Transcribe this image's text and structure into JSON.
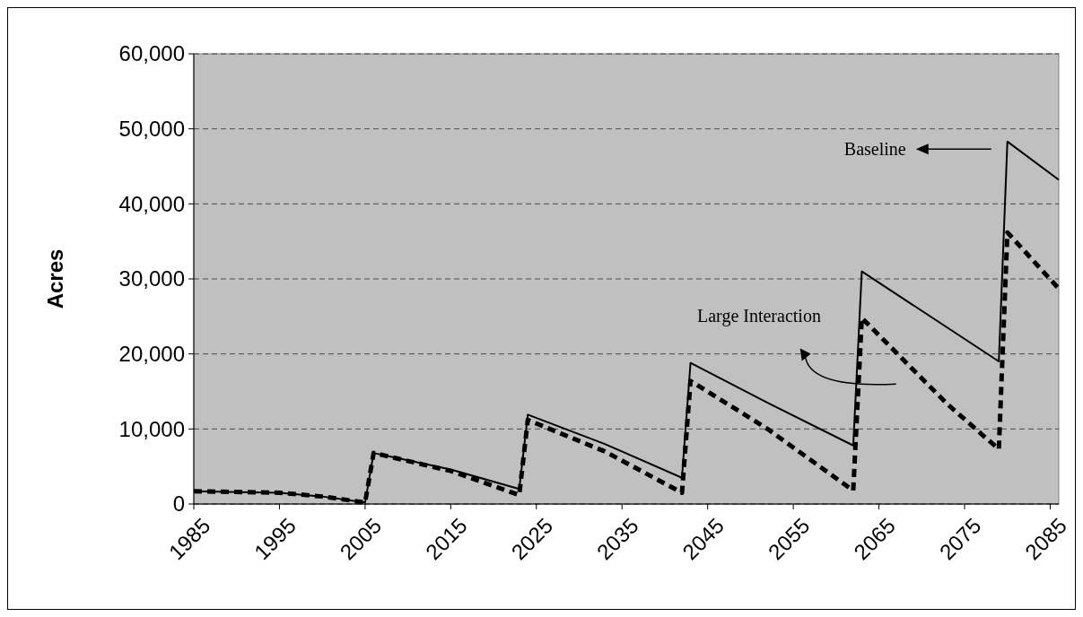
{
  "chart_data": {
    "type": "line",
    "ylabel": "Acres",
    "xlim": [
      1985,
      2086
    ],
    "xticks": [
      1985,
      1995,
      2005,
      2015,
      2025,
      2035,
      2045,
      2055,
      2065,
      2075,
      2085
    ],
    "ylim": [
      0,
      60000
    ],
    "yticks": [
      {
        "value": 0,
        "label": "0"
      },
      {
        "value": 10000,
        "label": "10,000"
      },
      {
        "value": 20000,
        "label": "20,000"
      },
      {
        "value": 30000,
        "label": "30,000"
      },
      {
        "value": 40000,
        "label": "40,000"
      },
      {
        "value": 50000,
        "label": "50,000"
      },
      {
        "value": 60000,
        "label": "60,000"
      }
    ],
    "grid": "y",
    "legend": "top right",
    "series": [
      {
        "name": "Baseline",
        "color": "#000000",
        "line_style": "solid",
        "x": [
          1985,
          1995,
          2000,
          2005,
          2006,
          2015,
          2023,
          2024,
          2033,
          2042,
          2043,
          2052,
          2062,
          2063,
          2079,
          2080,
          2086
        ],
        "values": [
          1700,
          1500,
          1000,
          200,
          6800,
          4600,
          2000,
          11900,
          8000,
          3500,
          18800,
          13500,
          7800,
          31000,
          19000,
          48300,
          43200
        ]
      },
      {
        "name": "Large Interaction",
        "color": "#000000",
        "line_style": "dashed",
        "x": [
          1985,
          1995,
          2000,
          2005,
          2006,
          2015,
          2023,
          2024,
          2033,
          2042,
          2043,
          2052,
          2062,
          2063,
          2073,
          2079,
          2080,
          2086
        ],
        "values": [
          1700,
          1500,
          1000,
          200,
          6800,
          4400,
          1200,
          11200,
          7000,
          1500,
          16400,
          10000,
          1800,
          24800,
          13300,
          7300,
          36200,
          28700
        ]
      }
    ]
  }
}
